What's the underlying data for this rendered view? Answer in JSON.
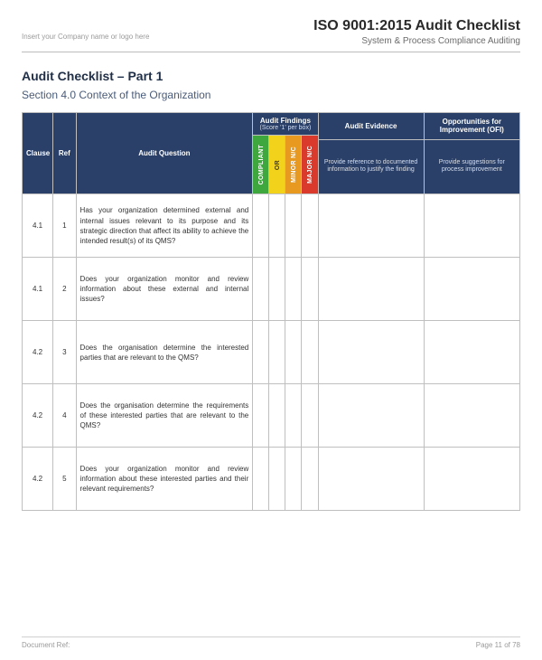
{
  "header": {
    "logo_placeholder": "Insert your Company name or logo here",
    "title_line1": "ISO 9001:2015 Audit Checklist",
    "title_line2": "System & Process Compliance Auditing"
  },
  "content": {
    "main_title": "Audit Checklist – Part 1",
    "section_title": "Section 4.0 Context of the Organization"
  },
  "table": {
    "columns": {
      "clause": "Clause",
      "ref": "Ref",
      "question": "Audit Question",
      "findings_group": "Audit Findings",
      "findings_sub": "(Score '1' per box)",
      "evidence": "Audit Evidence",
      "ofi": "Opportunities for Improvement (OFI)",
      "evidence_desc": "Provide reference to documented information to justify the finding",
      "ofi_desc": "Provide suggestions for process improvement"
    },
    "finding_labels": {
      "compliant": "COMPLIANT",
      "or": "OR",
      "minor": "MINOR N/C",
      "major": "MAJOR N/C"
    },
    "finding_colors": {
      "compliant": "#3ea83e",
      "or": "#f2d21b",
      "minor": "#e79a1f",
      "major": "#d93a2b"
    },
    "header_bg": "#2a4068",
    "border_color": "#bfbfbf",
    "rows": [
      {
        "clause": "4.1",
        "ref": "1",
        "question": "Has your organization determined external and internal issues relevant to its purpose and its strategic direction that affect its ability to achieve the intended result(s) of its QMS?"
      },
      {
        "clause": "4.1",
        "ref": "2",
        "question": "Does your organization monitor and review information about these external and internal issues?"
      },
      {
        "clause": "4.2",
        "ref": "3",
        "question": "Does the organisation determine the interested parties that are relevant to the QMS?"
      },
      {
        "clause": "4.2",
        "ref": "4",
        "question": "Does the organisation determine the requirements of these interested parties that are relevant to the QMS?"
      },
      {
        "clause": "4.2",
        "ref": "5",
        "question": "Does your organization monitor and review information about these interested parties and their relevant requirements?"
      }
    ]
  },
  "footer": {
    "left": "Document Ref:",
    "right": "Page 11 of 78"
  }
}
